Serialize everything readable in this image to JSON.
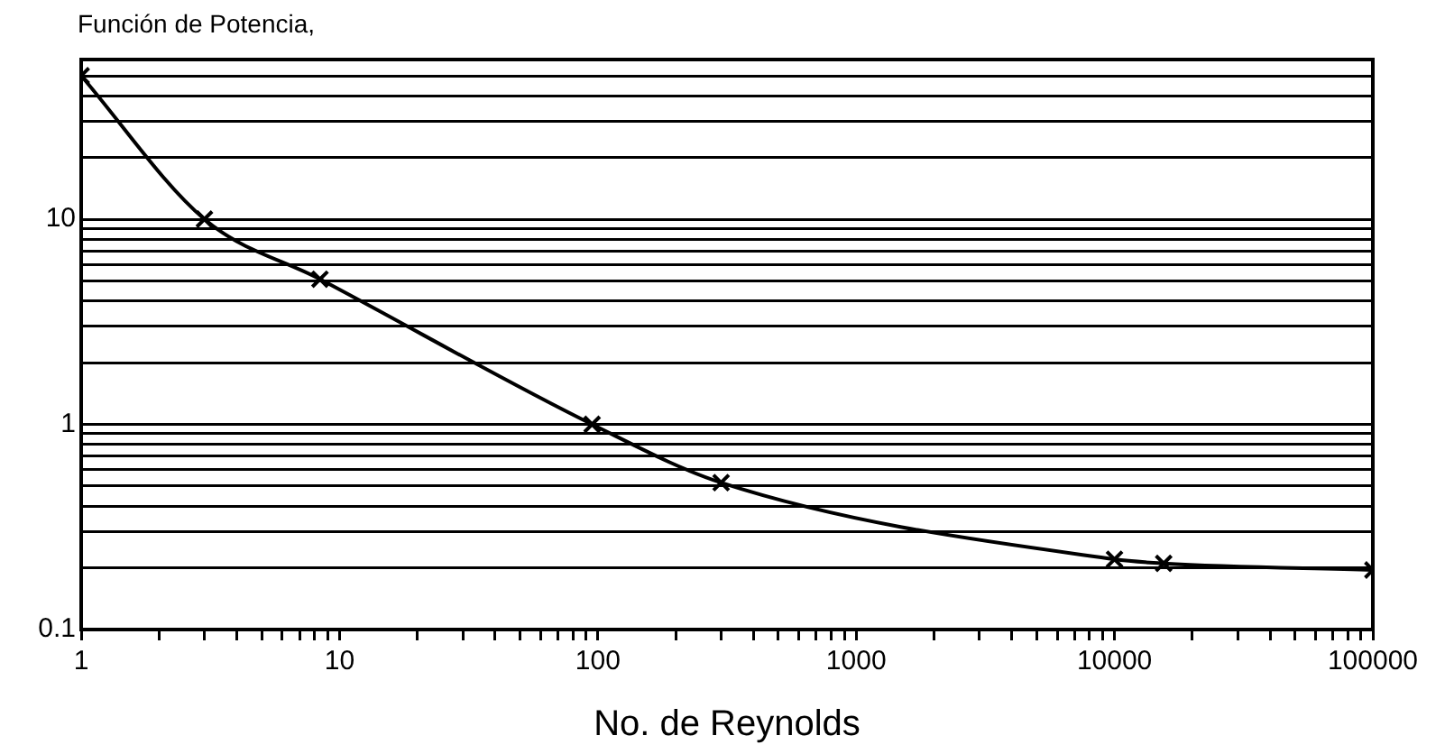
{
  "chart_data": {
    "type": "line",
    "ylabel": "Función de Potencia,",
    "xlabel": "No. de Reynolds",
    "x": [
      1,
      3,
      8.4,
      95,
      300,
      10000,
      15500,
      100000
    ],
    "series": [
      {
        "color": "#000000",
        "values": [
          50,
          10,
          5.1,
          1,
          0.52,
          0.22,
          0.21,
          0.195
        ]
      }
    ],
    "log": "xy",
    "xlim": [
      1,
      100000
    ],
    "ylim": [
      0.1,
      60
    ],
    "xticks": [
      1,
      {
        "value": 2,
        "label": null
      },
      {
        "value": 3,
        "label": null
      },
      {
        "value": 4,
        "label": null
      },
      {
        "value": 5,
        "label": null
      },
      {
        "value": 6,
        "label": null
      },
      {
        "value": 7,
        "label": null
      },
      {
        "value": 8,
        "label": null
      },
      {
        "value": 9,
        "label": null
      },
      10,
      {
        "value": 20,
        "label": null
      },
      {
        "value": 30,
        "label": null
      },
      {
        "value": 40,
        "label": null
      },
      {
        "value": 50,
        "label": null
      },
      {
        "value": 60,
        "label": null
      },
      {
        "value": 70,
        "label": null
      },
      {
        "value": 80,
        "label": null
      },
      {
        "value": 90,
        "label": null
      },
      100,
      {
        "value": 200,
        "label": null
      },
      {
        "value": 300,
        "label": null
      },
      {
        "value": 400,
        "label": null
      },
      {
        "value": 500,
        "label": null
      },
      {
        "value": 600,
        "label": null
      },
      {
        "value": 700,
        "label": null
      },
      {
        "value": 800,
        "label": null
      },
      {
        "value": 900,
        "label": null
      },
      1000,
      {
        "value": 2000,
        "label": null
      },
      {
        "value": 3000,
        "label": null
      },
      {
        "value": 4000,
        "label": null
      },
      {
        "value": 5000,
        "label": null
      },
      {
        "value": 6000,
        "label": null
      },
      {
        "value": 7000,
        "label": null
      },
      {
        "value": 8000,
        "label": null
      },
      {
        "value": 9000,
        "label": null
      },
      10000,
      {
        "value": 20000,
        "label": null
      },
      {
        "value": 30000,
        "label": null
      },
      {
        "value": 40000,
        "label": null
      },
      {
        "value": 50000,
        "label": null
      },
      {
        "value": 60000,
        "label": null
      },
      {
        "value": 70000,
        "label": null
      },
      {
        "value": 80000,
        "label": null
      },
      {
        "value": 90000,
        "label": null
      },
      100000
    ],
    "yticks": [
      0.1,
      {
        "value": 0.2,
        "label": null
      },
      {
        "value": 0.3,
        "label": null
      },
      {
        "value": 0.4,
        "label": null
      },
      {
        "value": 0.5,
        "label": null
      },
      {
        "value": 0.6,
        "label": null
      },
      {
        "value": 0.7,
        "label": null
      },
      {
        "value": 0.8,
        "label": null
      },
      {
        "value": 0.9,
        "label": null
      },
      1,
      {
        "value": 2,
        "label": null
      },
      {
        "value": 3,
        "label": null
      },
      {
        "value": 4,
        "label": null
      },
      {
        "value": 5,
        "label": null
      },
      {
        "value": 6,
        "label": null
      },
      {
        "value": 7,
        "label": null
      },
      {
        "value": 8,
        "label": null
      },
      {
        "value": 9,
        "label": null
      },
      10,
      {
        "value": 20,
        "label": null
      },
      {
        "value": 30,
        "label": null
      },
      {
        "value": 40,
        "label": null
      },
      {
        "value": 50,
        "label": null
      },
      {
        "value": 60,
        "label": null
      }
    ],
    "grid": "y",
    "marker": "cross",
    "line_style": "solid",
    "legend": false
  }
}
